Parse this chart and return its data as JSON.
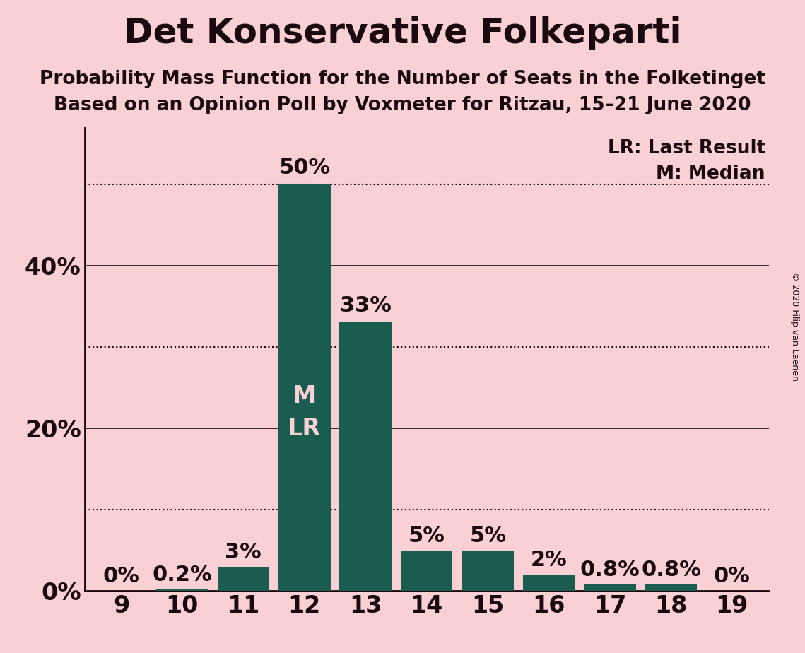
{
  "title": "Det Konservative Folkeparti",
  "subtitle1": "Probability Mass Function for the Number of Seats in the Folketinget",
  "subtitle2": "Based on an Opinion Poll by Voxmeter for Ritzau, 15–21 June 2020",
  "copyright": "© 2020 Filip van Laenen",
  "seats": [
    9,
    10,
    11,
    12,
    13,
    14,
    15,
    16,
    17,
    18,
    19
  ],
  "probabilities": [
    0.0,
    0.2,
    3.0,
    50.0,
    33.0,
    5.0,
    5.0,
    2.0,
    0.8,
    0.8,
    0.0
  ],
  "bar_color": "#1a5c50",
  "bar_labels": [
    "0%",
    "0.2%",
    "3%",
    "50%",
    "33%",
    "5%",
    "5%",
    "2%",
    "0.8%",
    "0.8%",
    "0%"
  ],
  "median_seat": 12,
  "last_result_seat": 12,
  "background_color": "#f9d0d4",
  "text_color": "#1a0a10",
  "bar_label_color_inside": "#f9d0d4",
  "ylim": [
    0,
    57
  ],
  "solid_lines": [
    20,
    40
  ],
  "dotted_lines": [
    10,
    30,
    50
  ],
  "legend_lr": "LR: Last Result",
  "legend_m": "M: Median",
  "title_fontsize": 36,
  "subtitle_fontsize": 19,
  "label_fontsize": 22,
  "axis_fontsize": 24,
  "legend_fontsize": 19
}
